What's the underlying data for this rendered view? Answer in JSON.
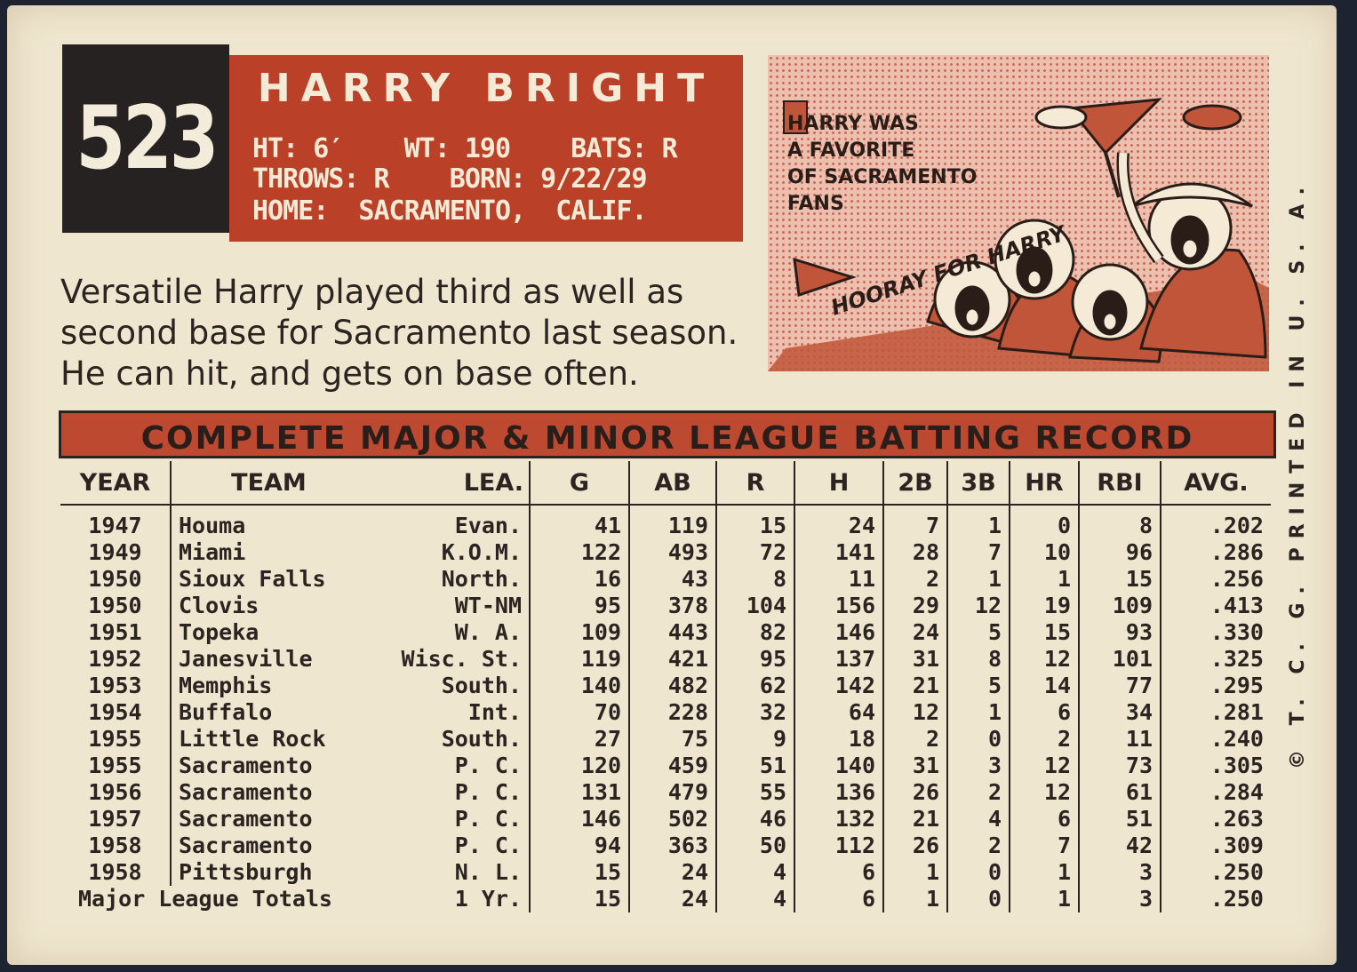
{
  "card": {
    "number": "523",
    "player_name": "HARRY BRIGHT",
    "info_line1": "HT: 6′    WT: 190    BATS: R",
    "info_line2": "THROWS: R    BORN: 9/22/29",
    "info_line3": "HOME:  SACRAMENTO,  CALIF.",
    "bio_lines": [
      "Versatile Harry played third as well as",
      "second base for Sacramento last season.",
      "He can hit, and gets on base often."
    ],
    "cartoon": {
      "caption_lines": [
        "HARRY WAS",
        "A FAVORITE",
        "OF SACRAMENTO",
        "FANS"
      ],
      "cheer": "HOORAY FOR HARRY"
    },
    "side_text": "© T. C. G.  PRINTED IN U. S. A."
  },
  "record": {
    "title": "COMPLETE MAJOR & MINOR LEAGUE BATTING RECORD",
    "columns": [
      "YEAR",
      "TEAM",
      "LEA.",
      "G",
      "AB",
      "R",
      "H",
      "2B",
      "3B",
      "HR",
      "RBI",
      "AVG."
    ],
    "rows": [
      [
        "1947",
        "Houma",
        "Evan.",
        "41",
        "119",
        "15",
        "24",
        "7",
        "1",
        "0",
        "8",
        ".202"
      ],
      [
        "1949",
        "Miami",
        "K.O.M.",
        "122",
        "493",
        "72",
        "141",
        "28",
        "7",
        "10",
        "96",
        ".286"
      ],
      [
        "1950",
        "Sioux Falls",
        "North.",
        "16",
        "43",
        "8",
        "11",
        "2",
        "1",
        "1",
        "15",
        ".256"
      ],
      [
        "1950",
        "Clovis",
        "WT-NM",
        "95",
        "378",
        "104",
        "156",
        "29",
        "12",
        "19",
        "109",
        ".413"
      ],
      [
        "1951",
        "Topeka",
        "W. A.",
        "109",
        "443",
        "82",
        "146",
        "24",
        "5",
        "15",
        "93",
        ".330"
      ],
      [
        "1952",
        "Janesville",
        "Wisc. St.",
        "119",
        "421",
        "95",
        "137",
        "31",
        "8",
        "12",
        "101",
        ".325"
      ],
      [
        "1953",
        "Memphis",
        "South.",
        "140",
        "482",
        "62",
        "142",
        "21",
        "5",
        "14",
        "77",
        ".295"
      ],
      [
        "1954",
        "Buffalo",
        "Int.",
        "70",
        "228",
        "32",
        "64",
        "12",
        "1",
        "6",
        "34",
        ".281"
      ],
      [
        "1955",
        "Little Rock",
        "South.",
        "27",
        "75",
        "9",
        "18",
        "2",
        "0",
        "2",
        "11",
        ".240"
      ],
      [
        "1955",
        "Sacramento",
        "P. C.",
        "120",
        "459",
        "51",
        "140",
        "31",
        "3",
        "12",
        "73",
        ".305"
      ],
      [
        "1956",
        "Sacramento",
        "P. C.",
        "131",
        "479",
        "55",
        "136",
        "26",
        "2",
        "12",
        "61",
        ".284"
      ],
      [
        "1957",
        "Sacramento",
        "P. C.",
        "146",
        "502",
        "46",
        "132",
        "21",
        "4",
        "6",
        "51",
        ".263"
      ],
      [
        "1958",
        "Sacramento",
        "P. C.",
        "94",
        "363",
        "50",
        "112",
        "26",
        "2",
        "7",
        "42",
        ".309"
      ],
      [
        "1958",
        "Pittsburgh",
        "N. L.",
        "15",
        "24",
        "4",
        "6",
        "1",
        "0",
        "1",
        "3",
        ".250"
      ]
    ],
    "totals": {
      "label": "Major League Totals",
      "lea": "1 Yr.",
      "values": [
        "15",
        "24",
        "4",
        "6",
        "1",
        "0",
        "1",
        "3",
        ".250"
      ]
    }
  },
  "colors": {
    "card_stock": "#efe6cf",
    "red": "#bb4028",
    "black": "#262221"
  }
}
